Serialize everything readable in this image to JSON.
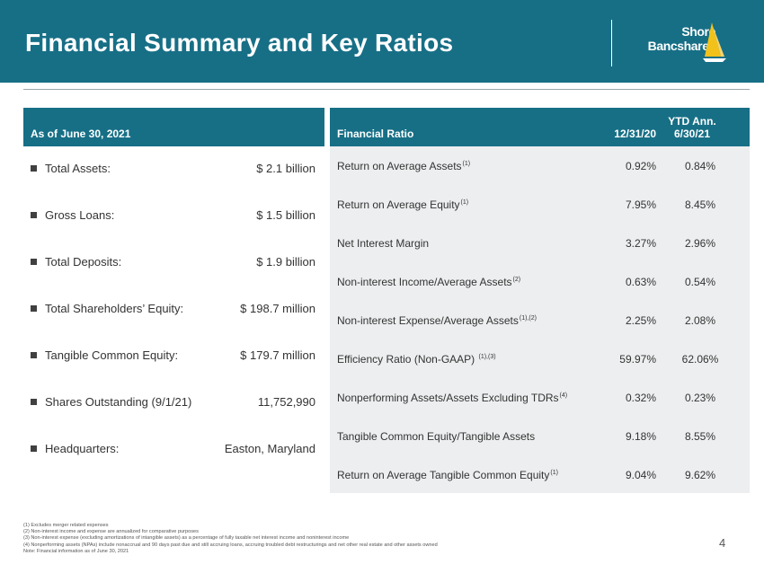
{
  "header": {
    "title": "Financial Summary and Key Ratios",
    "logo_line1": "Shore",
    "logo_line2": "Bancshares",
    "color": "#176f86"
  },
  "left": {
    "header": "As  of June 30, 2021",
    "items": [
      {
        "label": "Total Assets:",
        "value": "$ 2.1 billion"
      },
      {
        "label": "Gross Loans:",
        "value": "$ 1.5 billion"
      },
      {
        "label": "Total Deposits:",
        "value": "$ 1.9 billion"
      },
      {
        "label": "Total Shareholders’ Equity:",
        "value": "$ 198.7 million"
      },
      {
        "label": "Tangible Common Equity:",
        "value": "$ 179.7 million"
      },
      {
        "label": "Shares Outstanding (9/1/21)",
        "value": "11,752,990"
      },
      {
        "label": "Headquarters:",
        "value": "Easton, Maryland"
      }
    ]
  },
  "right": {
    "header_ratio": "Financial Ratio",
    "header_col1": "12/31/20",
    "header_col2_line1": "YTD Ann.",
    "header_col2_line2": "6/30/21",
    "rows": [
      {
        "label": "Return on Average Assets",
        "sup": "(1)",
        "v1": "0.92%",
        "v2": "0.84%"
      },
      {
        "label": "Return on Average Equity",
        "sup": "(1)",
        "v1": "7.95%",
        "v2": "8.45%"
      },
      {
        "label": "Net Interest Margin",
        "sup": "",
        "v1": "3.27%",
        "v2": "2.96%"
      },
      {
        "label": "Non-interest Income/Average Assets",
        "sup": "(2)",
        "v1": "0.63%",
        "v2": "0.54%"
      },
      {
        "label": "Non-interest Expense/Average Assets",
        "sup": "(1),(2)",
        "v1": "2.25%",
        "v2": "2.08%"
      },
      {
        "label": "Efficiency Ratio (Non-GAAP) ",
        "sup": "(1),(3)",
        "v1": "59.97%",
        "v2": "62.06%"
      },
      {
        "label": "Nonperforming Assets/Assets Excluding TDRs",
        "sup": "(4)",
        "v1": "0.32%",
        "v2": "0.23%"
      },
      {
        "label": "Tangible Common Equity/Tangible Assets",
        "sup": "",
        "v1": "9.18%",
        "v2": "8.55%"
      },
      {
        "label": "Return on Average Tangible Common Equity",
        "sup": "(1)",
        "v1": "9.04%",
        "v2": "9.62%"
      }
    ]
  },
  "footnotes": [
    "(1)    Excludes  merger related expenses",
    "(2)    Non-interest  income and expense  are annualized  for comparative  purposes",
    "(3)    Non-interest  expense  (excluding  amortizations  of  intangible  assets)  as a percentage  of  fully taxable net  interest income and noninterest  income",
    "(4)    Nonperforming  assets  (NPAs) include nonaccrual  and 90 days past due and still accruing loans, accruing  troubled  debt restructurings  and net other real estate  and other assets owned",
    "Note:  Financial  information  as of June 30, 2021"
  ],
  "page_number": "4"
}
